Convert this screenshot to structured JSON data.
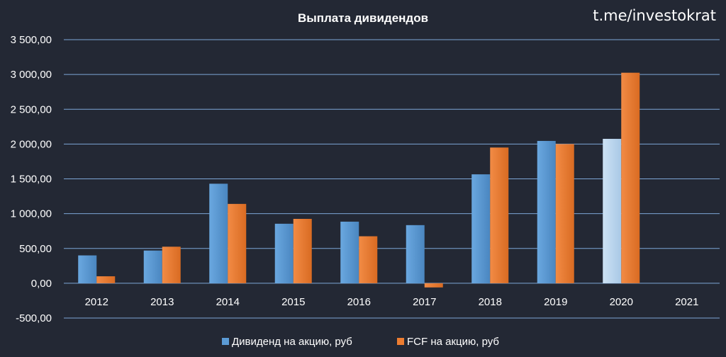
{
  "watermark": "t.me/investokrat",
  "chart_data": {
    "type": "bar",
    "title": "Выплата дивидендов",
    "categories": [
      "2012",
      "2013",
      "2014",
      "2015",
      "2016",
      "2017",
      "2018",
      "2019",
      "2020",
      "2021"
    ],
    "series": [
      {
        "name": "Дивиденд на акцию, руб",
        "values": [
          400,
          470,
          1430,
          855,
          885,
          835,
          1565,
          2045,
          2075,
          null
        ],
        "highlight": {
          "index": 8,
          "color": "#bdd7ee"
        }
      },
      {
        "name": "FCF на акцию, руб",
        "values": [
          100,
          525,
          1140,
          925,
          675,
          -60,
          1950,
          2000,
          3025,
          null
        ]
      }
    ],
    "yticks": [
      "3 500,00",
      "3 000,00",
      "2 500,00",
      "2 000,00",
      "1 500,00",
      "1 000,00",
      "500,00",
      "0,00",
      "-500,00"
    ],
    "ylim": [
      -500,
      3500
    ],
    "grid": true,
    "legend_position": "bottom",
    "colors": {
      "series1": "#5b9bd5",
      "series2": "#ed7d31",
      "grid": "#7da6d6",
      "background": "#232834"
    }
  }
}
